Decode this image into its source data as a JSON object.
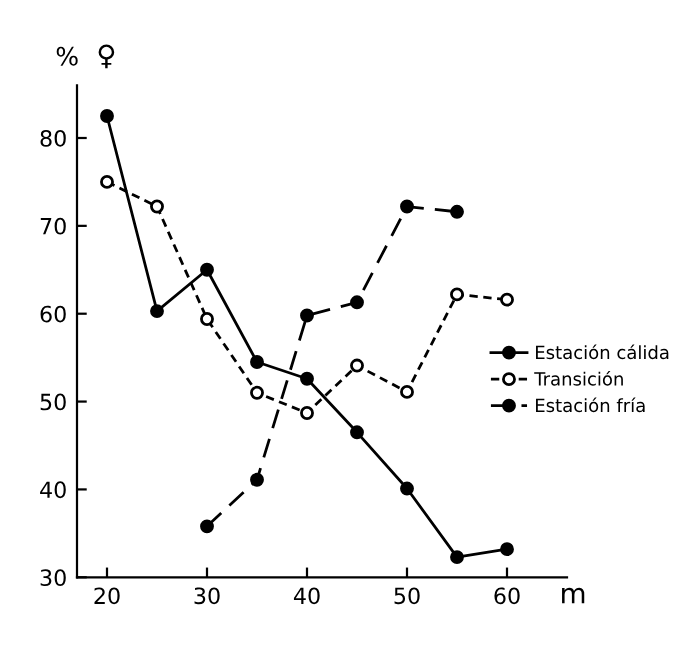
{
  "chart_data": {
    "type": "line",
    "xlabel": "m",
    "ylabel": "%",
    "annotations": [
      "♀"
    ],
    "xlim": [
      17,
      66
    ],
    "ylim": [
      30,
      86
    ],
    "xticks": [
      20,
      30,
      40,
      50,
      60
    ],
    "yticks": [
      30,
      40,
      50,
      60,
      70,
      80
    ],
    "grid": false,
    "legend": "right",
    "marker": "circle",
    "series": [
      {
        "name": "Estación cálida",
        "color": "#000000",
        "line_style": "solid",
        "x": [
          20,
          25,
          30,
          35,
          40,
          45,
          50,
          55,
          60
        ],
        "values": [
          82.5,
          60.3,
          65,
          54.5,
          52.6,
          46.5,
          40.1,
          32.3,
          33.2
        ]
      },
      {
        "name": "Transición",
        "color": "#000000",
        "line_style": "dashed",
        "x": [
          20,
          25,
          30,
          35,
          40,
          45,
          50,
          55,
          60
        ],
        "values": [
          75,
          72.2,
          59.4,
          51,
          48.7,
          54.1,
          51.1,
          62.2,
          61.6
        ]
      },
      {
        "name": "Estación fría",
        "color": "#000000",
        "line_style": "longdash",
        "x": [
          30,
          35,
          40,
          45,
          50,
          55
        ],
        "values": [
          35.8,
          41.1,
          59.8,
          61.3,
          72.2,
          71.6
        ]
      }
    ]
  }
}
